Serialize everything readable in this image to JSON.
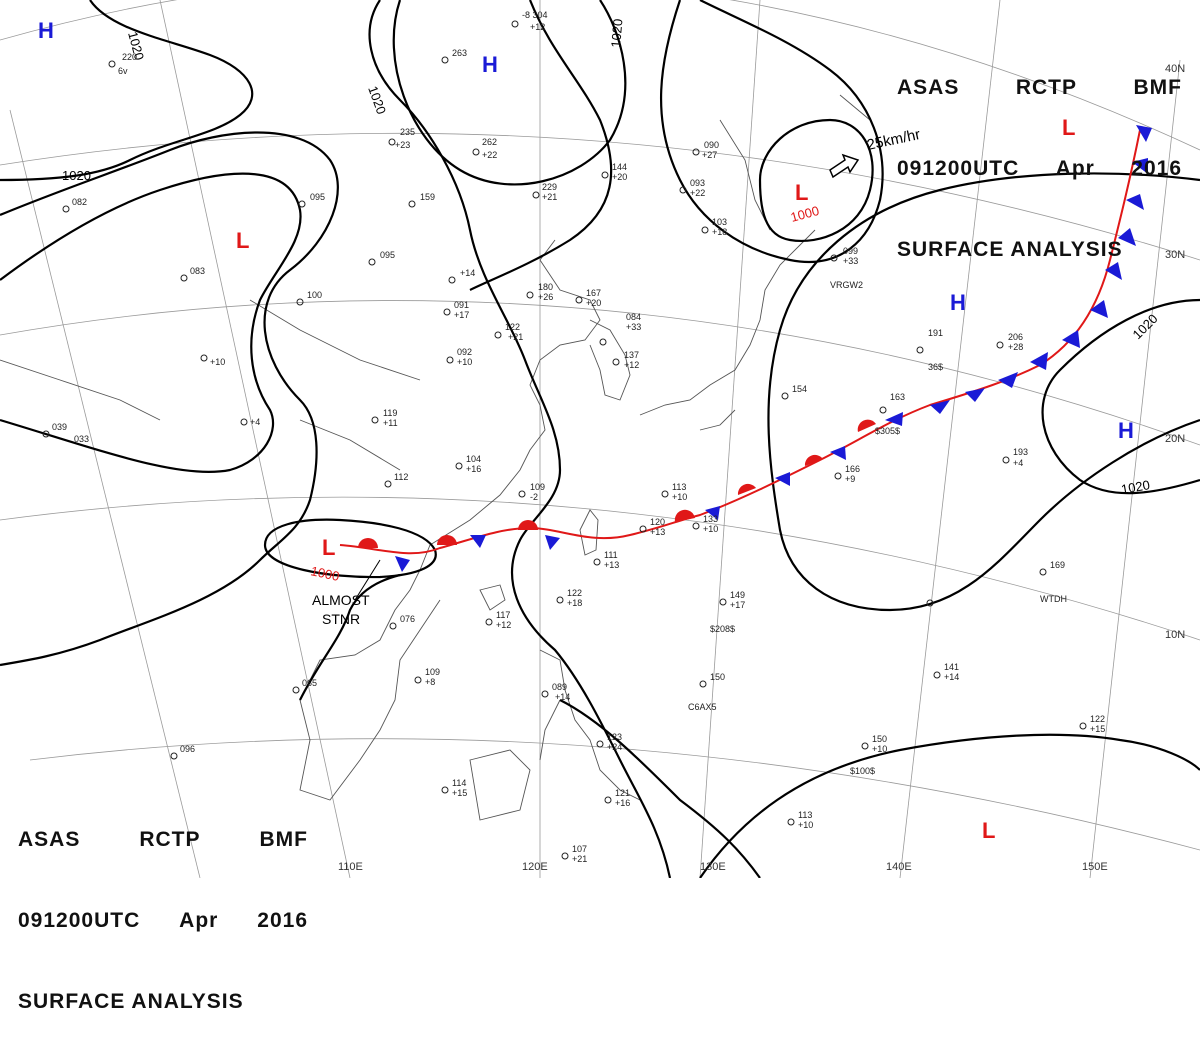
{
  "header": {
    "line1": [
      "ASAS",
      "RCTP",
      "BMF"
    ],
    "line2": [
      "091200UTC",
      "Apr",
      "2016"
    ],
    "line3": "SURFACE ANALYSIS"
  },
  "colors": {
    "high": "#1a1ad6",
    "low": "#e01818",
    "front_blue": "#1a1ad6",
    "front_red": "#e01818",
    "isobar": "#000000",
    "coast": "#555555"
  },
  "isobar_labels": {
    "a": "1020",
    "b": "1020",
    "c": "1020",
    "d": "1020",
    "e": "1020",
    "f": "1020",
    "g": "1000",
    "h": "1000"
  },
  "pressure_centers": {
    "h1": "H",
    "h2": "H",
    "h3": "H",
    "h4": "H",
    "l1": "L",
    "l2": "L",
    "l3": "L",
    "l4": "L",
    "l5": "L"
  },
  "latitude_labels": {
    "lat40": "40N",
    "lat30": "30N",
    "lat20": "20N",
    "lat10": "10N"
  },
  "longitude_labels": {
    "lon110": "110E",
    "lon120": "120E",
    "lon130": "130E",
    "lon140": "140E",
    "lon150": "150E"
  },
  "annotations": {
    "motion": "25km/hr",
    "stationary": "ALMOST",
    "stationary2": "STNR"
  },
  "stations": {
    "s1": "-8 304",
    "s2": "+12",
    "s3": "263",
    "s4": "220",
    "s5": "6v",
    "s6": "235",
    "s7": "+23",
    "s8": "262",
    "s9": "+22",
    "s10": "144",
    "s11": "+20",
    "s12": "229",
    "s13": "+21",
    "s14": "090",
    "s15": "+27",
    "s16": "093",
    "s17": "+22",
    "s18": "103",
    "s19": "+18",
    "s20": "095",
    "s21": "159",
    "s22": "095",
    "s23": "+14",
    "s24": "180",
    "s25": "+26",
    "s26": "167",
    "s27": "+20",
    "s28": "099",
    "s29": "+33",
    "s30": "084",
    "s31": "+33",
    "s32": "137",
    "s33": "+12",
    "s34": "122",
    "s35": "+21",
    "s36": "091",
    "s37": "+17",
    "s38": "092",
    "s39": "+10",
    "s40": "119",
    "s41": "+11",
    "s42": "104",
    "s43": "+16",
    "s44": "109",
    "s45": "-2",
    "s46": "191",
    "s47": "206",
    "s48": "163",
    "s49": "154",
    "s50": "166",
    "s51": "+9",
    "s52": "193",
    "s53": "+4",
    "s54": "113",
    "s55": "+10",
    "s56": "133",
    "s57": "+10",
    "s58": "120",
    "s59": "+13",
    "s60": "111",
    "s61": "+13",
    "s62": "122",
    "s63": "+18",
    "s64": "117",
    "s65": "+12",
    "s66": "076",
    "s67": "149",
    "s68": "+17",
    "s69": "169",
    "s70": "150",
    "s71": "109",
    "s72": "+8",
    "s73": "141",
    "s74": "+14",
    "s75": "089",
    "s76": "+14",
    "s77": "123",
    "s78": "+24",
    "s79": "114",
    "s80": "+15",
    "s81": "121",
    "s82": "+16",
    "s83": "107",
    "s84": "+21",
    "s85": "113",
    "s86": "+10",
    "s87": "150",
    "s88": "+10",
    "s89": "122",
    "s90": "+15",
    "s91": "065",
    "s92": "096",
    "s93": "039",
    "s94": "033",
    "s95": "112",
    "s96": "082",
    "s97": "100",
    "s98": "WTDH",
    "s99": "VRGW2",
    "s100": "$305$",
    "s101": "$208$",
    "s102": "$100$",
    "s103": "C6AX5",
    "s104": "36$",
    "s105": "083",
    "s106": "+28",
    "s107": "+10",
    "s108": "+4"
  }
}
